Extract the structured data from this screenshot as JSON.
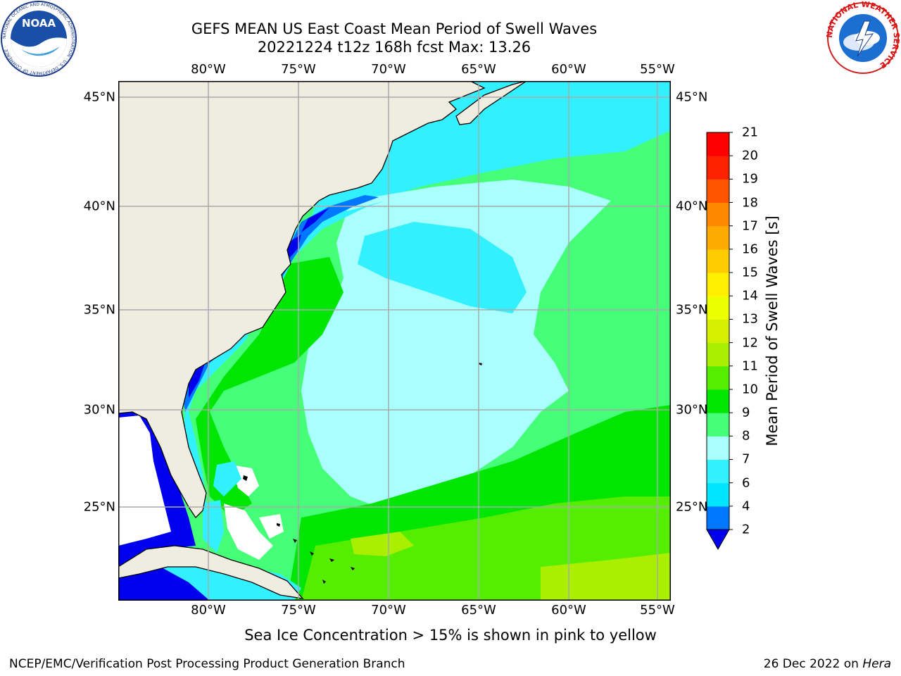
{
  "header": {
    "title_line1": "GEFS MEAN US East Coast Mean Period of Swell Waves",
    "title_line2": "20221224 t12z 168h fcst   Max: 13.26"
  },
  "logos": {
    "left": {
      "text": "NOAA",
      "ring_text": "NATIONAL OCEANIC AND ATMOSPHERIC ADMINISTRATION · U.S. DEPARTMENT OF COMMERCE ·"
    },
    "right": {
      "ring_text": "NATIONAL WEATHER SERVICE"
    }
  },
  "map": {
    "lon_ticks": [
      "80°W",
      "75°W",
      "70°W",
      "65°W",
      "60°W",
      "55°W"
    ],
    "lat_ticks": [
      "45°N",
      "40°N",
      "35°N",
      "30°N",
      "25°N"
    ],
    "lon_values": [
      -80,
      -75,
      -70,
      -65,
      -60,
      -55
    ],
    "lat_values": [
      45,
      40,
      35,
      30,
      25
    ],
    "extent": {
      "lon_min": -85,
      "lon_max": -54.3,
      "lat_min": 20.5,
      "lat_max": 46
    },
    "colors": {
      "land": "#efede0",
      "no_data": "#ffffff",
      "grid": "#aaaaaa",
      "coast": "#000000"
    }
  },
  "colorbar": {
    "label": "Mean Period of Swell Waves [s]",
    "ticks": [
      "2",
      "4",
      "6",
      "7",
      "8",
      "9",
      "10",
      "11",
      "12",
      "13",
      "14",
      "15",
      "16",
      "17",
      "18",
      "19",
      "20",
      "21"
    ],
    "colors": [
      "#0077ff",
      "#00e5ff",
      "#33f0ff",
      "#aaffff",
      "#44ff77",
      "#00e600",
      "#55ee00",
      "#aaee00",
      "#d4f000",
      "#eeff00",
      "#ffee00",
      "#ffcc00",
      "#ffaa00",
      "#ff8800",
      "#ff5500",
      "#ff2200",
      "#ff0000"
    ],
    "under_color": "#0000ee",
    "extend": "min"
  },
  "footer": {
    "note": "Sea Ice Concentration > 15% is shown in pink to yellow",
    "credit": "NCEP/EMC/Verification Post Processing Product Generation Branch",
    "date": "26 Dec 2022 on ",
    "host": "Hera"
  }
}
